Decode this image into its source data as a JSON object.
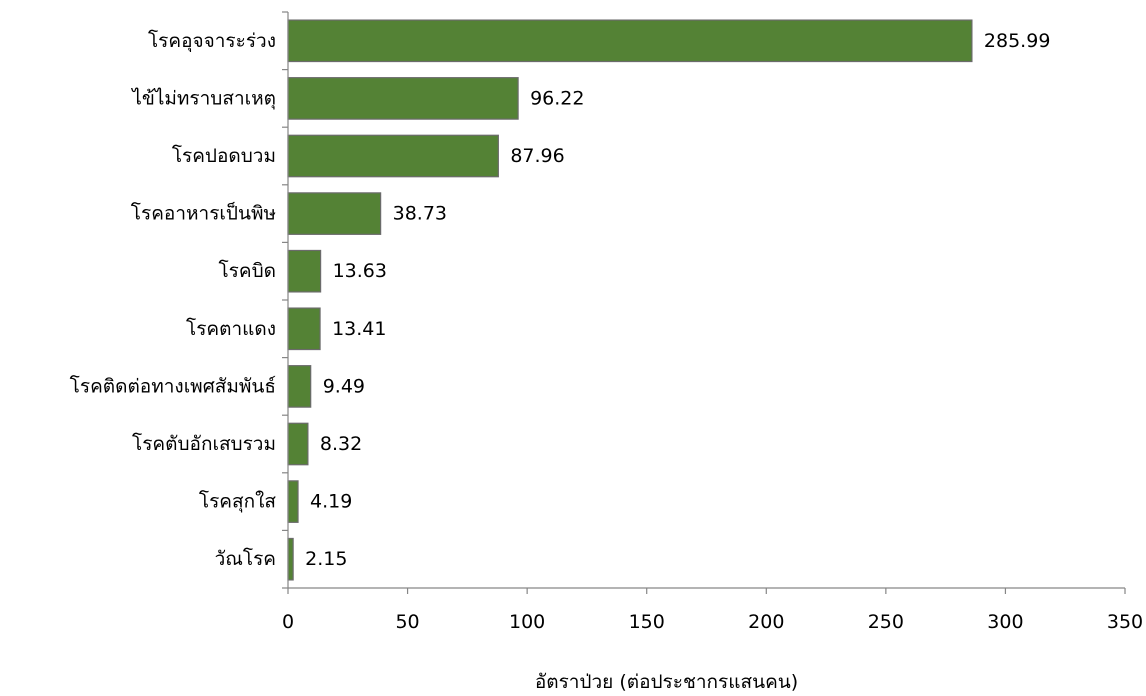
{
  "chart_data": {
    "type": "bar",
    "orientation": "horizontal",
    "categories": [
      "โรคอุจจาระร่วง",
      "ไข้ไม่ทราบสาเหตุ",
      "โรคปอดบวม",
      "โรคอาหารเป็นพิษ",
      "โรคบิด",
      "โรคตาแดง",
      "โรคติดต่อทางเพศสัมพันธ์",
      "โรคตับอักเสบรวม",
      "โรคสุกใส",
      "วัณโรค"
    ],
    "values": [
      285.99,
      96.22,
      87.96,
      38.73,
      13.63,
      13.41,
      9.49,
      8.32,
      4.19,
      2.15
    ],
    "value_labels": [
      "285.99",
      "96.22",
      "87.96",
      "38.73",
      "13.63",
      "13.41",
      "9.49",
      "8.32",
      "4.19",
      "2.15"
    ],
    "xlabel": "อัตราป่วย (ต่อประชากรแสนคน)",
    "ylabel": "",
    "title": "",
    "xlim": [
      0,
      350
    ],
    "xticks": [
      0,
      50,
      100,
      150,
      200,
      250,
      300,
      350
    ],
    "xtick_labels": [
      "0",
      "50",
      "100",
      "150",
      "200",
      "250",
      "300",
      "350"
    ],
    "grid": false,
    "legend": "none",
    "bar_color": "#548235",
    "bar_edge_color": "#6b6b6b",
    "axis_color": "#868686"
  }
}
